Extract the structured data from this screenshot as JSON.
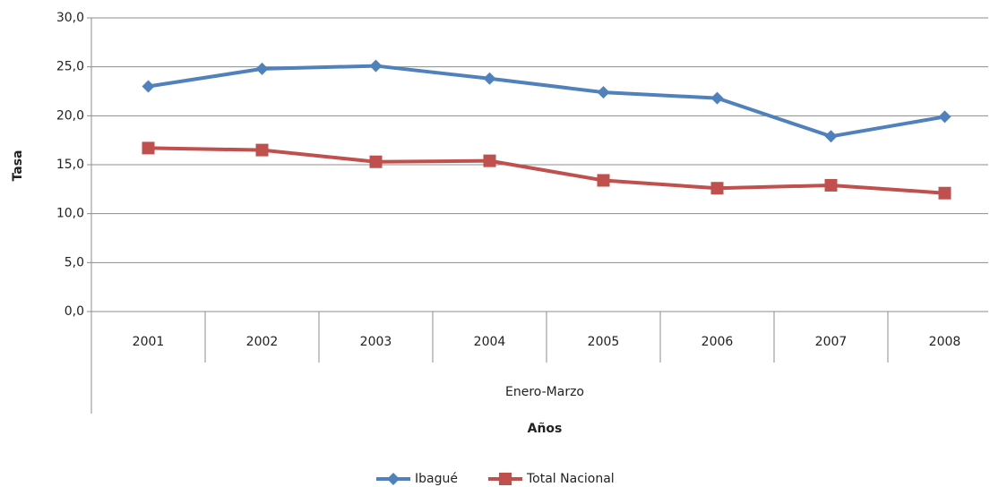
{
  "chart_data": {
    "type": "line",
    "categories": [
      "2001",
      "2002",
      "2003",
      "2004",
      "2005",
      "2006",
      "2007",
      "2008"
    ],
    "category_group": "Enero-Marzo",
    "x_label": "Años",
    "y_label": "Tasa",
    "series": [
      {
        "name": "Ibagué",
        "color": "#4f81bd",
        "marker": "diamond",
        "values": [
          23.0,
          24.8,
          25.1,
          23.8,
          22.4,
          21.8,
          17.9,
          19.9
        ]
      },
      {
        "name": "Total Nacional",
        "color": "#c0504d",
        "marker": "square",
        "values": [
          16.7,
          16.5,
          15.3,
          15.4,
          13.4,
          12.6,
          12.9,
          12.1
        ]
      }
    ],
    "ylim": [
      0,
      30
    ],
    "yticks": [
      {
        "value": 0,
        "label": "0,0"
      },
      {
        "value": 5,
        "label": "5,0"
      },
      {
        "value": 10,
        "label": "10,0"
      },
      {
        "value": 15,
        "label": "15,0"
      },
      {
        "value": 20,
        "label": "20,0"
      },
      {
        "value": 25,
        "label": "25,0"
      },
      {
        "value": 30,
        "label": "30,0"
      }
    ],
    "grid": true,
    "legend": "bottom"
  }
}
